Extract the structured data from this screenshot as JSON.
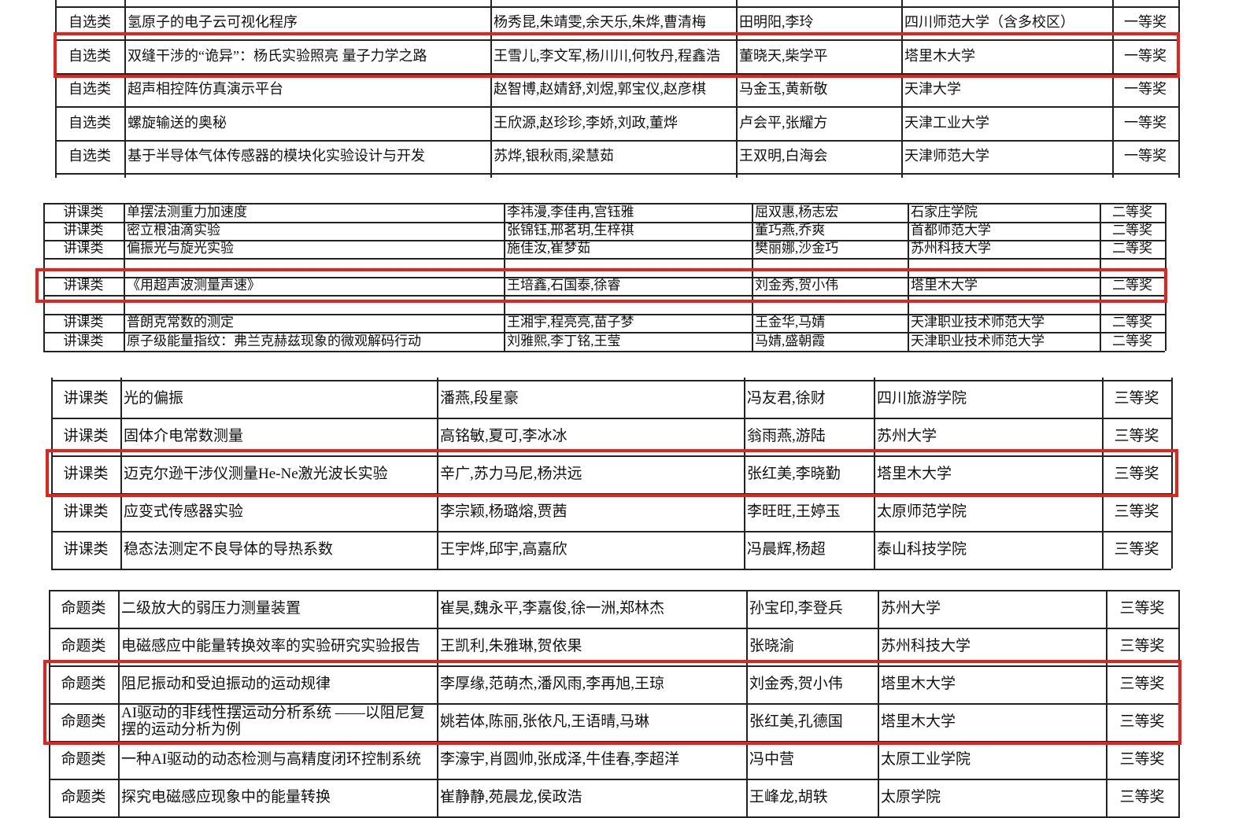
{
  "tables": [
    {
      "rows": [
        [
          "自选类",
          "氢原子的电子云可视化程序",
          "杨秀昆,朱靖雯,余天乐,朱烨,曹清梅",
          "田明阳,李玲",
          "四川师范大学（含多校区）",
          "一等奖"
        ],
        [
          "自选类",
          "双缝干涉的“诡异”：杨氏实验照亮 量子力学之路",
          "王雪儿,李文军,杨川川,何牧丹,程鑫浩",
          "董晓天,柴学平",
          "塔里木大学",
          "一等奖"
        ],
        [
          "自选类",
          "超声相控阵仿真演示平台",
          "赵智博,赵婧舒,刘煜,郭宝仪,赵彦棋",
          "马金玉,黄新敬",
          "天津大学",
          "一等奖"
        ],
        [
          "自选类",
          "螺旋输送的奥秘",
          "王欣源,赵珍珍,李娇,刘政,董烨",
          "卢会平,张耀方",
          "天津工业大学",
          "一等奖"
        ],
        [
          "自选类",
          "基于半导体气体传感器的模块化实验设计与开发",
          "苏烨,银秋雨,梁慧茹",
          "王双明,白海会",
          "天津师范大学",
          "一等奖"
        ]
      ]
    },
    {
      "rows": [
        [
          "讲课类",
          "单摆法测重力加速度",
          "李祎漫,李佳冉,宫钰雅",
          "屈双惠,杨志宏",
          "石家庄学院",
          "二等奖"
        ],
        [
          "讲课类",
          "密立根油滴实验",
          "张锦钰,邢茗玥,生梓祺",
          "董巧燕,乔爽",
          "首都师范大学",
          "二等奖"
        ],
        [
          "讲课类",
          "偏振光与旋光实验",
          "施佳汝,崔梦茹",
          "樊丽娜,沙金巧",
          "苏州科技大学",
          "二等奖"
        ],
        [
          "讲课类",
          "《用超声波测量声速》",
          "王培鑫,石国泰,徐睿",
          "刘金秀,贺小伟",
          "塔里木大学",
          "二等奖"
        ],
        [
          "讲课类",
          "普朗克常数的测定",
          "王湘宇,程亮亮,苗子梦",
          "王金华,马婧",
          "天津职业技术师范大学",
          "二等奖"
        ],
        [
          "讲课类",
          "原子级能量指纹：弗兰克赫兹现象的微观解码行动",
          "刘雅熙,李丁铭,王莹",
          "马婧,盛朝霞",
          "天津职业技术师范大学",
          "二等奖"
        ]
      ]
    },
    {
      "rows": [
        [
          "讲课类",
          "光的偏振",
          "潘燕,段星豪",
          "冯友君,徐财",
          "四川旅游学院",
          "三等奖"
        ],
        [
          "讲课类",
          "固体介电常数测量",
          "高铭敏,夏可,李冰冰",
          "翁雨燕,游陆",
          "苏州大学",
          "三等奖"
        ],
        [
          "讲课类",
          "迈克尔逊干涉仪测量He-Ne激光波长实验",
          "辛广,苏力马尼,杨洪远",
          "张红美,李晓勤",
          "塔里木大学",
          "三等奖"
        ],
        [
          "讲课类",
          "应变式传感器实验",
          "李宗颖,杨璐熔,贾茜",
          "李旺旺,王婷玉",
          "太原师范学院",
          "三等奖"
        ],
        [
          "讲课类",
          "稳态法测定不良导体的导热系数",
          "王宇烨,邱宇,高嘉欣",
          "冯晨辉,杨超",
          "泰山科技学院",
          "三等奖"
        ]
      ]
    },
    {
      "rows": [
        [
          "命题类",
          "二级放大的弱压力测量装置",
          "崔昊,魏永平,李嘉俊,徐一洲,郑林杰",
          "孙宝印,李登兵",
          "苏州大学",
          "三等奖"
        ],
        [
          "命题类",
          "电磁感应中能量转换效率的实验研究实验报告",
          "王凯利,朱雅琳,贺依果",
          "张晓渝",
          "苏州科技大学",
          "三等奖"
        ],
        [
          "命题类",
          "阻尼振动和受迫振动的运动规律",
          "李厚缘,范萌杰,潘风雨,李再旭,王琼",
          "刘金秀,贺小伟",
          "塔里木大学",
          "三等奖"
        ],
        [
          "命题类",
          "AI驱动的非线性摆运动分析系统 ——以阻尼复摆的运动分析为例",
          "姚若体,陈丽,张依凡,王语晴,马琳",
          "张红美,孔德国",
          "塔里木大学",
          "三等奖"
        ],
        [
          "命题类",
          "一种AI驱动的动态检测与高精度闭环控制系统",
          "李濠宇,肖圆帅,张成泽,牛佳春,李超洋",
          "冯中营",
          "太原工业学院",
          "三等奖"
        ],
        [
          "命题类",
          "探究电磁感应现象中的能量转换",
          "崔静静,苑晨龙,侯政浩",
          "王峰龙,胡轶",
          "太原学院",
          "三等奖"
        ]
      ]
    }
  ]
}
